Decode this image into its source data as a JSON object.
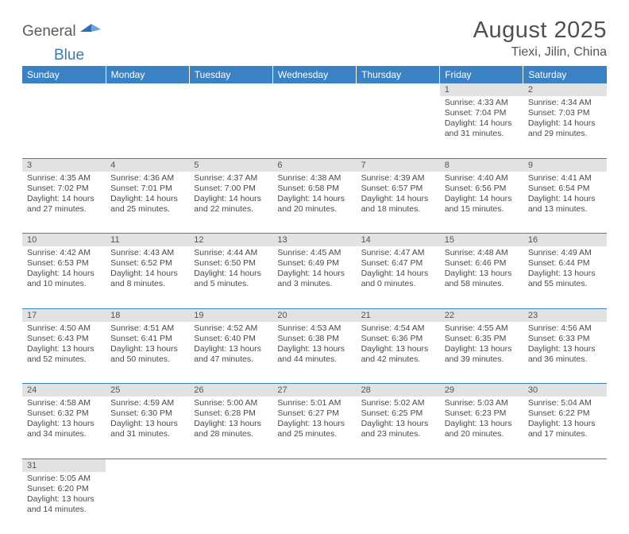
{
  "logo": {
    "part1": "General",
    "part2": "Blue"
  },
  "title": "August 2025",
  "subtitle": "Tiexi, Jilin, China",
  "colors": {
    "header_bg": "#3b82c4",
    "header_fg": "#ffffff",
    "daynum_bg": "#e2e2e2",
    "row_border": "#3b82c4",
    "text": "#4a4a4a",
    "logo_gray": "#5c5c5c",
    "logo_blue": "#3a78b5"
  },
  "weekdays": [
    "Sunday",
    "Monday",
    "Tuesday",
    "Wednesday",
    "Thursday",
    "Friday",
    "Saturday"
  ],
  "weeks": [
    [
      null,
      null,
      null,
      null,
      null,
      {
        "n": "1",
        "sunrise": "4:33 AM",
        "sunset": "7:04 PM",
        "day_h": "14",
        "day_m": "31"
      },
      {
        "n": "2",
        "sunrise": "4:34 AM",
        "sunset": "7:03 PM",
        "day_h": "14",
        "day_m": "29"
      }
    ],
    [
      {
        "n": "3",
        "sunrise": "4:35 AM",
        "sunset": "7:02 PM",
        "day_h": "14",
        "day_m": "27"
      },
      {
        "n": "4",
        "sunrise": "4:36 AM",
        "sunset": "7:01 PM",
        "day_h": "14",
        "day_m": "25"
      },
      {
        "n": "5",
        "sunrise": "4:37 AM",
        "sunset": "7:00 PM",
        "day_h": "14",
        "day_m": "22"
      },
      {
        "n": "6",
        "sunrise": "4:38 AM",
        "sunset": "6:58 PM",
        "day_h": "14",
        "day_m": "20"
      },
      {
        "n": "7",
        "sunrise": "4:39 AM",
        "sunset": "6:57 PM",
        "day_h": "14",
        "day_m": "18"
      },
      {
        "n": "8",
        "sunrise": "4:40 AM",
        "sunset": "6:56 PM",
        "day_h": "14",
        "day_m": "15"
      },
      {
        "n": "9",
        "sunrise": "4:41 AM",
        "sunset": "6:54 PM",
        "day_h": "14",
        "day_m": "13"
      }
    ],
    [
      {
        "n": "10",
        "sunrise": "4:42 AM",
        "sunset": "6:53 PM",
        "day_h": "14",
        "day_m": "10"
      },
      {
        "n": "11",
        "sunrise": "4:43 AM",
        "sunset": "6:52 PM",
        "day_h": "14",
        "day_m": "8"
      },
      {
        "n": "12",
        "sunrise": "4:44 AM",
        "sunset": "6:50 PM",
        "day_h": "14",
        "day_m": "5"
      },
      {
        "n": "13",
        "sunrise": "4:45 AM",
        "sunset": "6:49 PM",
        "day_h": "14",
        "day_m": "3"
      },
      {
        "n": "14",
        "sunrise": "4:47 AM",
        "sunset": "6:47 PM",
        "day_h": "14",
        "day_m": "0"
      },
      {
        "n": "15",
        "sunrise": "4:48 AM",
        "sunset": "6:46 PM",
        "day_h": "13",
        "day_m": "58"
      },
      {
        "n": "16",
        "sunrise": "4:49 AM",
        "sunset": "6:44 PM",
        "day_h": "13",
        "day_m": "55"
      }
    ],
    [
      {
        "n": "17",
        "sunrise": "4:50 AM",
        "sunset": "6:43 PM",
        "day_h": "13",
        "day_m": "52"
      },
      {
        "n": "18",
        "sunrise": "4:51 AM",
        "sunset": "6:41 PM",
        "day_h": "13",
        "day_m": "50"
      },
      {
        "n": "19",
        "sunrise": "4:52 AM",
        "sunset": "6:40 PM",
        "day_h": "13",
        "day_m": "47"
      },
      {
        "n": "20",
        "sunrise": "4:53 AM",
        "sunset": "6:38 PM",
        "day_h": "13",
        "day_m": "44"
      },
      {
        "n": "21",
        "sunrise": "4:54 AM",
        "sunset": "6:36 PM",
        "day_h": "13",
        "day_m": "42"
      },
      {
        "n": "22",
        "sunrise": "4:55 AM",
        "sunset": "6:35 PM",
        "day_h": "13",
        "day_m": "39"
      },
      {
        "n": "23",
        "sunrise": "4:56 AM",
        "sunset": "6:33 PM",
        "day_h": "13",
        "day_m": "36"
      }
    ],
    [
      {
        "n": "24",
        "sunrise": "4:58 AM",
        "sunset": "6:32 PM",
        "day_h": "13",
        "day_m": "34"
      },
      {
        "n": "25",
        "sunrise": "4:59 AM",
        "sunset": "6:30 PM",
        "day_h": "13",
        "day_m": "31"
      },
      {
        "n": "26",
        "sunrise": "5:00 AM",
        "sunset": "6:28 PM",
        "day_h": "13",
        "day_m": "28"
      },
      {
        "n": "27",
        "sunrise": "5:01 AM",
        "sunset": "6:27 PM",
        "day_h": "13",
        "day_m": "25"
      },
      {
        "n": "28",
        "sunrise": "5:02 AM",
        "sunset": "6:25 PM",
        "day_h": "13",
        "day_m": "23"
      },
      {
        "n": "29",
        "sunrise": "5:03 AM",
        "sunset": "6:23 PM",
        "day_h": "13",
        "day_m": "20"
      },
      {
        "n": "30",
        "sunrise": "5:04 AM",
        "sunset": "6:22 PM",
        "day_h": "13",
        "day_m": "17"
      }
    ],
    [
      {
        "n": "31",
        "sunrise": "5:05 AM",
        "sunset": "6:20 PM",
        "day_h": "13",
        "day_m": "14"
      },
      null,
      null,
      null,
      null,
      null,
      null
    ]
  ]
}
